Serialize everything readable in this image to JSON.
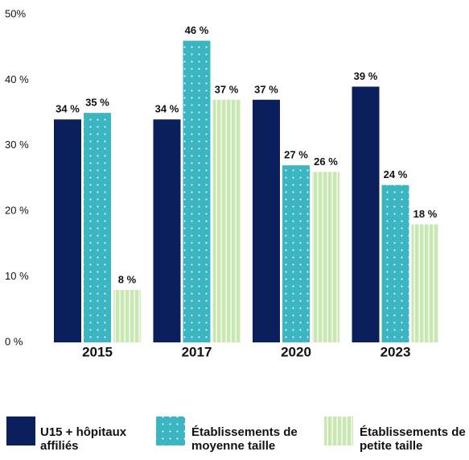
{
  "chart_data": {
    "type": "bar",
    "categories": [
      "2015",
      "2017",
      "2020",
      "2023"
    ],
    "series": [
      {
        "name": "U15 + hôpitaux affiliés",
        "color": "#0b1f5c",
        "values": [
          34,
          34,
          37,
          39
        ],
        "value_labels": [
          "34 %",
          "34 %",
          "37 %",
          "39 %"
        ]
      },
      {
        "name": "Établissements de moyenne taille",
        "color": "#3bb5c1",
        "values": [
          35,
          46,
          27,
          24
        ],
        "value_labels": [
          "35 %",
          "46 %",
          "27 %",
          "24 %"
        ]
      },
      {
        "name": "Établissements de petite taille",
        "color": "#c9e7b3",
        "values": [
          8,
          37,
          26,
          18
        ],
        "value_labels": [
          "8 %",
          "37 %",
          "26 %",
          "18 %"
        ]
      }
    ],
    "ylim": [
      0,
      50
    ],
    "yticks": [
      {
        "value": 0,
        "label": "0 %"
      },
      {
        "value": 10,
        "label": "10 %"
      },
      {
        "value": 20,
        "label": "20 %"
      },
      {
        "value": 30,
        "label": "30 %"
      },
      {
        "value": 40,
        "label": "40 %"
      },
      {
        "value": 50,
        "label": "50%"
      }
    ],
    "grid": false
  }
}
